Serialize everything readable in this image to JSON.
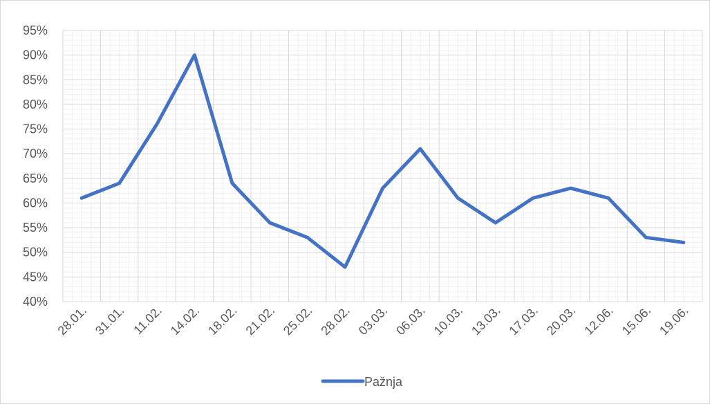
{
  "chart_data": {
    "type": "line",
    "title": "",
    "xlabel": "",
    "ylabel": "",
    "categories": [
      "28.01.",
      "31.01.",
      "11.02.",
      "14.02.",
      "18.02.",
      "21.02.",
      "25.02.",
      "28.02.",
      "03.03.",
      "06.03.",
      "10.03.",
      "13.03.",
      "17.03.",
      "20.03.",
      "12.06.",
      "15.06.",
      "19.06."
    ],
    "ylim": [
      0.4,
      0.95
    ],
    "yticks": [
      0.4,
      0.45,
      0.5,
      0.55,
      0.6,
      0.65,
      0.7,
      0.75,
      0.8,
      0.85,
      0.9,
      0.95
    ],
    "ytick_labels": [
      "40%",
      "45%",
      "50%",
      "55%",
      "60%",
      "65%",
      "70%",
      "75%",
      "80%",
      "85%",
      "90%",
      "95%"
    ],
    "x_points": [
      0,
      1,
      2,
      3,
      4,
      5,
      6,
      7,
      8,
      9,
      10,
      11,
      12,
      13,
      14,
      15,
      16
    ],
    "grid": true,
    "legend_position": "bottom",
    "series": [
      {
        "name": "Pažnja",
        "color": "#4472c4",
        "values": [
          0.61,
          0.64,
          0.76,
          0.9,
          0.64,
          0.56,
          0.53,
          0.47,
          0.63,
          0.71,
          0.61,
          0.56,
          0.61,
          0.63,
          0.61,
          0.53,
          0.52
        ]
      }
    ]
  }
}
